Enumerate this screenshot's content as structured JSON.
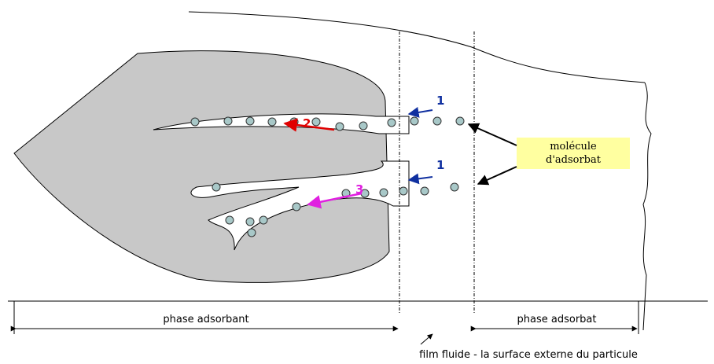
{
  "labels": {
    "arrow_1_top": "1",
    "arrow_2": "2",
    "arrow_1_bottom": "1",
    "arrow_3": "3"
  },
  "callout": {
    "lines": [
      "molécule",
      "d'adsorbat"
    ]
  },
  "zones": {
    "adsorbent": "phase adsorbant",
    "adsorbate": "phase adsorbat"
  },
  "caption": "film fluide  -  la surface externe du particule"
}
